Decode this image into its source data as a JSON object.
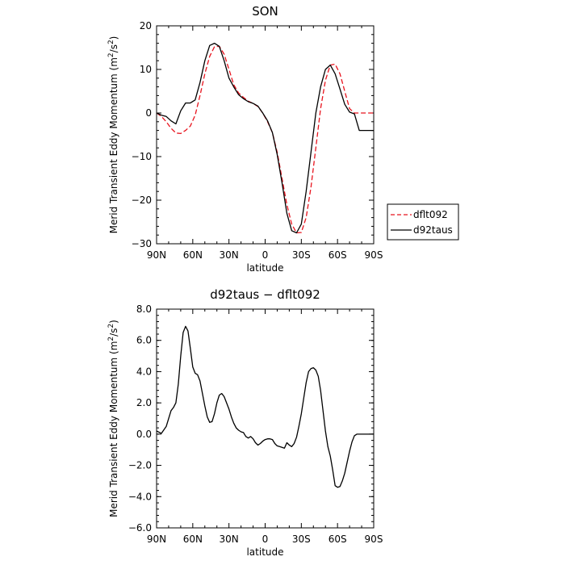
{
  "chart_data": [
    {
      "type": "line",
      "title": "SON",
      "xlabel": "latitude",
      "ylabel": "Merid Transient Eddy Momentum",
      "yunit_base": "(m",
      "yunit_sup1": "2",
      "yunit_mid": "/s",
      "yunit_sup2": "2",
      "yunit_end": ")",
      "xlim": [
        90,
        -90
      ],
      "ylim": [
        -30,
        20
      ],
      "xticks": [
        90,
        60,
        30,
        0,
        -30,
        -60,
        -90
      ],
      "xticklabels": [
        "90N",
        "60N",
        "30N",
        "0",
        "30S",
        "60S",
        "90S"
      ],
      "yticks": [
        -30,
        -20,
        -10,
        0,
        10,
        20
      ],
      "yticklabels": [
        "−30",
        "−20",
        "−10",
        "0",
        "10",
        "20"
      ],
      "legend_position": "right",
      "series": [
        {
          "name": "dflt092",
          "color": "#e8141e",
          "dash": "dashed",
          "x": [
            90,
            86,
            82,
            78,
            74,
            70,
            66,
            62,
            58,
            54,
            50,
            46,
            42,
            38,
            34,
            30,
            26,
            22,
            18,
            14,
            10,
            6,
            2,
            -2,
            -6,
            -10,
            -14,
            -18,
            -22,
            -26,
            -30,
            -34,
            -38,
            -42,
            -46,
            -50,
            -54,
            -58,
            -62,
            -66,
            -70,
            -74,
            -78,
            -82,
            -86,
            -90
          ],
          "y": [
            0,
            -0.8,
            -2,
            -3.5,
            -4.6,
            -4.7,
            -4,
            -3,
            -0.5,
            4,
            9,
            13,
            15.2,
            15.3,
            13.5,
            10,
            6.5,
            4.6,
            3.6,
            2.7,
            2.2,
            1.5,
            0,
            -2,
            -4.5,
            -9,
            -15,
            -21,
            -25.5,
            -27.5,
            -27.4,
            -24,
            -17,
            -8,
            1,
            7.5,
            11,
            11.2,
            9,
            5,
            1,
            0,
            0,
            0,
            0,
            0
          ]
        },
        {
          "name": "d92taus",
          "color": "#000000",
          "dash": "solid",
          "x": [
            90,
            86,
            82,
            78,
            74,
            70,
            66,
            62,
            58,
            54,
            50,
            46,
            42,
            38,
            34,
            30,
            26,
            22,
            18,
            14,
            10,
            6,
            2,
            -2,
            -6,
            -10,
            -14,
            -18,
            -22,
            -26,
            -30,
            -34,
            -38,
            -42,
            -46,
            -50,
            -54,
            -58,
            -62,
            -66,
            -70,
            -74,
            -78,
            -82,
            -86,
            -90
          ],
          "y": [
            0,
            -0.5,
            -0.8,
            -1.8,
            -2.5,
            0.5,
            2.3,
            2.3,
            3,
            7,
            12,
            15.5,
            16,
            15.3,
            12,
            8,
            6,
            4.2,
            3.3,
            2.6,
            2.2,
            1.6,
            0,
            -1.8,
            -4.5,
            -9.5,
            -16,
            -23,
            -27,
            -27.5,
            -25.5,
            -18,
            -9,
            0,
            6,
            10,
            11,
            9,
            5.5,
            2,
            0.2,
            -0.2,
            -4,
            -4,
            -4,
            -4
          ]
        }
      ]
    },
    {
      "type": "line",
      "title": "d92taus − dflt092",
      "xlabel": "latitude",
      "ylabel": "Merid Transient Eddy Momentum",
      "yunit_base": "(m",
      "yunit_sup1": "2",
      "yunit_mid": "/s",
      "yunit_sup2": "2",
      "yunit_end": ")",
      "xlim": [
        90,
        -90
      ],
      "ylim": [
        -6,
        8
      ],
      "xticks": [
        90,
        60,
        30,
        0,
        -30,
        -60,
        -90
      ],
      "xticklabels": [
        "90N",
        "60N",
        "30N",
        "0",
        "30S",
        "60S",
        "90S"
      ],
      "yticks": [
        -6,
        -4,
        -2,
        0,
        2,
        4,
        6,
        8
      ],
      "yticklabels": [
        "−6.0",
        "−4.0",
        "−2.0",
        "0.0",
        "2.0",
        "4.0",
        "6.0",
        "8.0"
      ],
      "series": [
        {
          "name": "",
          "color": "#000000",
          "dash": "solid",
          "x": [
            90,
            86,
            82,
            78,
            76,
            74,
            72,
            70,
            68,
            66,
            64,
            62,
            60,
            58,
            56,
            54,
            52,
            50,
            48,
            46,
            44,
            42,
            40,
            38,
            36,
            34,
            32,
            30,
            28,
            26,
            24,
            22,
            20,
            18,
            16,
            14,
            12,
            10,
            8,
            6,
            4,
            2,
            0,
            -2,
            -4,
            -6,
            -8,
            -10,
            -12,
            -14,
            -16,
            -18,
            -20,
            -22,
            -24,
            -26,
            -28,
            -30,
            -32,
            -34,
            -36,
            -38,
            -40,
            -42,
            -44,
            -46,
            -48,
            -50,
            -52,
            -54,
            -56,
            -58,
            -60,
            -62,
            -64,
            -66,
            -68,
            -70,
            -72,
            -74,
            -76,
            -78,
            -80,
            -82,
            -84,
            -86,
            -88,
            -90
          ],
          "y": [
            0.2,
            0.05,
            0.5,
            1.5,
            1.7,
            2.0,
            3.2,
            5.0,
            6.5,
            6.9,
            6.6,
            5.5,
            4.3,
            3.9,
            3.8,
            3.4,
            2.6,
            1.8,
            1.1,
            0.75,
            0.8,
            1.3,
            2.0,
            2.5,
            2.6,
            2.4,
            2.0,
            1.6,
            1.1,
            0.7,
            0.4,
            0.25,
            0.15,
            0.1,
            -0.15,
            -0.25,
            -0.15,
            -0.3,
            -0.55,
            -0.7,
            -0.6,
            -0.45,
            -0.35,
            -0.3,
            -0.3,
            -0.35,
            -0.6,
            -0.75,
            -0.8,
            -0.85,
            -0.9,
            -0.55,
            -0.7,
            -0.8,
            -0.6,
            -0.2,
            0.5,
            1.3,
            2.3,
            3.3,
            4.0,
            4.2,
            4.25,
            4.1,
            3.7,
            2.8,
            1.5,
            0.2,
            -0.8,
            -1.4,
            -2.3,
            -3.3,
            -3.4,
            -3.35,
            -3.0,
            -2.5,
            -1.8,
            -1.1,
            -0.5,
            -0.1,
            0.0,
            0.0,
            0.0,
            0.0,
            0.0,
            0.0,
            0.0,
            0.0
          ]
        }
      ]
    }
  ]
}
